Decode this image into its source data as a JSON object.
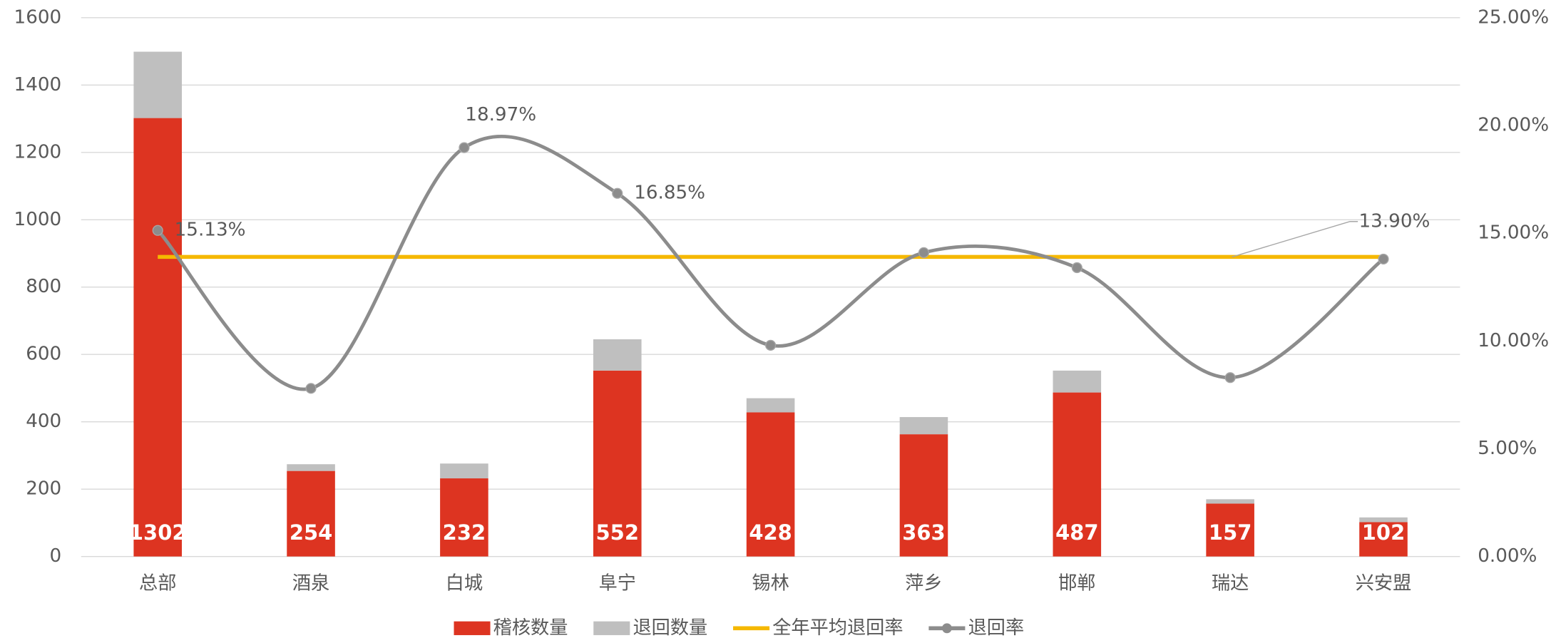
{
  "chart_data": {
    "type": "bar",
    "categories": [
      "总部",
      "酒泉",
      "白城",
      "阜宁",
      "锡林",
      "萍乡",
      "邯郸",
      "瑞达",
      "兴安盟"
    ],
    "series": [
      {
        "name": "稽核数量",
        "color": "#dd3421",
        "type": "bar",
        "values": [
          1302,
          254,
          232,
          552,
          428,
          363,
          487,
          157,
          102
        ]
      },
      {
        "name": "退回数量",
        "color": "#bfbfbf",
        "type": "bar",
        "values": [
          197,
          20,
          44,
          93,
          42,
          51,
          65,
          13,
          14
        ]
      },
      {
        "name": "全年平均退回率",
        "color": "#f5b800",
        "type": "line",
        "axis": "y2",
        "values": [
          13.9,
          13.9,
          13.9,
          13.9,
          13.9,
          13.9,
          13.9,
          13.9,
          13.9
        ],
        "value_labels": [
          null,
          null,
          null,
          null,
          null,
          null,
          null,
          null,
          "13.90%"
        ]
      },
      {
        "name": "退回率",
        "color": "#8c8c8c",
        "type": "line",
        "axis": "y2",
        "values": [
          15.13,
          7.8,
          18.97,
          16.85,
          9.8,
          14.1,
          13.4,
          8.3,
          13.8
        ],
        "value_labels": [
          "15.13%",
          null,
          "18.97%",
          "16.85%",
          null,
          null,
          null,
          null,
          null
        ]
      }
    ],
    "stacked": true,
    "ylim": [
      0,
      1600
    ],
    "yticks": [
      0,
      200,
      400,
      600,
      800,
      1000,
      1200,
      1400,
      1600
    ],
    "y2lim": [
      0,
      25
    ],
    "y2ticks": [
      {
        "value": 0,
        "label": "0.00%"
      },
      {
        "value": 5,
        "label": "5.00%"
      },
      {
        "value": 10,
        "label": "10.00%"
      },
      {
        "value": 15,
        "label": "15.00%"
      },
      {
        "value": 20,
        "label": "20.00%"
      },
      {
        "value": 25,
        "label": "25.00%"
      }
    ],
    "grid": true,
    "legend": "bottom"
  }
}
